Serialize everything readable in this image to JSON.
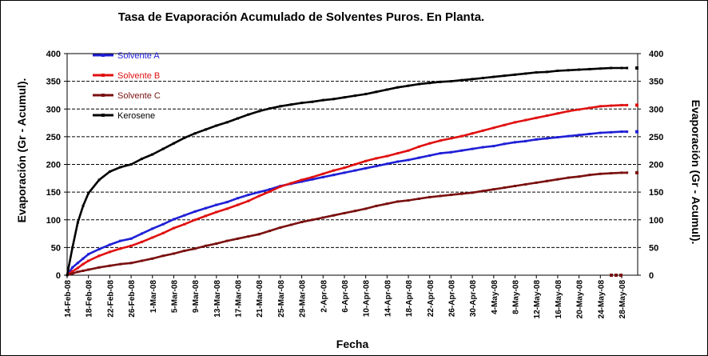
{
  "chart_data": {
    "type": "line",
    "title": "Tasa de Evaporación Acumulado de Solventes Puros. En Planta.",
    "xlabel": "Fecha",
    "ylabel": "Evaporación (Gr - Acumul).",
    "y2label": "Evaporación (Gr - Acumul).",
    "ylim": [
      0,
      400
    ],
    "yticks": [
      "0",
      "50",
      "100",
      "150",
      "200",
      "250",
      "300",
      "350",
      "400"
    ],
    "xlim": [
      "14-Feb-08",
      "31-May-08"
    ],
    "xticks": [
      "14-Feb-08",
      "18-Feb-08",
      "22-Feb-08",
      "26-Feb-08",
      "1-Mar-08",
      "5-Mar-08",
      "9-Mar-08",
      "13-Mar-08",
      "17-Mar-08",
      "21-Mar-08",
      "25-Mar-08",
      "29-Mar-08",
      "2-Apr-08",
      "6-Apr-08",
      "10-Apr-08",
      "14-Apr-08",
      "18-Apr-08",
      "22-Apr-08",
      "26-Apr-08",
      "30-Apr-08",
      "4-May-08",
      "8-May-08",
      "12-May-08",
      "16-May-08",
      "20-May-08",
      "24-May-08",
      "28-May-08"
    ],
    "grid": "horizontal",
    "legend_position": "top-left",
    "x": [
      "14-Feb-08",
      "15-Feb-08",
      "16-Feb-08",
      "17-Feb-08",
      "18-Feb-08",
      "20-Feb-08",
      "22-Feb-08",
      "24-Feb-08",
      "26-Feb-08",
      "28-Feb-08",
      "1-Mar-08",
      "3-Mar-08",
      "5-Mar-08",
      "7-Mar-08",
      "9-Mar-08",
      "11-Mar-08",
      "13-Mar-08",
      "15-Mar-08",
      "17-Mar-08",
      "19-Mar-08",
      "21-Mar-08",
      "23-Mar-08",
      "25-Mar-08",
      "27-Mar-08",
      "29-Mar-08",
      "31-Mar-08",
      "2-Apr-08",
      "4-Apr-08",
      "6-Apr-08",
      "8-Apr-08",
      "10-Apr-08",
      "12-Apr-08",
      "14-Apr-08",
      "16-Apr-08",
      "18-Apr-08",
      "20-Apr-08",
      "22-Apr-08",
      "24-Apr-08",
      "26-Apr-08",
      "28-Apr-08",
      "30-Apr-08",
      "2-May-08",
      "4-May-08",
      "6-May-08",
      "8-May-08",
      "10-May-08",
      "12-May-08",
      "14-May-08",
      "16-May-08",
      "18-May-08",
      "20-May-08",
      "22-May-08",
      "24-May-08",
      "26-May-08",
      "28-May-08",
      "29-May-08"
    ],
    "series": [
      {
        "name": "Solvente A",
        "color": "#1f1fd6",
        "values": [
          0,
          14,
          22,
          30,
          38,
          47,
          55,
          62,
          66,
          75,
          84,
          92,
          101,
          108,
          115,
          121,
          127,
          132,
          139,
          145,
          150,
          155,
          161,
          165,
          169,
          173,
          177,
          181,
          185,
          189,
          193,
          197,
          201,
          205,
          208,
          212,
          216,
          220,
          222,
          225,
          228,
          231,
          233,
          237,
          240,
          242,
          245,
          247,
          249,
          251,
          253,
          255,
          257,
          258,
          259,
          259
        ]
      },
      {
        "name": "Solvente B",
        "color": "#e01010",
        "values": [
          0,
          7,
          13,
          20,
          26,
          35,
          42,
          48,
          53,
          60,
          68,
          76,
          85,
          92,
          100,
          107,
          114,
          120,
          127,
          134,
          143,
          151,
          160,
          166,
          172,
          177,
          183,
          189,
          194,
          200,
          206,
          211,
          215,
          220,
          225,
          232,
          238,
          243,
          247,
          251,
          256,
          261,
          266,
          271,
          276,
          280,
          284,
          288,
          292,
          296,
          299,
          302,
          305,
          306,
          307,
          307
        ]
      },
      {
        "name": "Solvente C",
        "color": "#7a1010",
        "values": [
          0,
          3,
          6,
          8,
          10,
          14,
          17,
          20,
          22,
          26,
          30,
          35,
          39,
          44,
          48,
          53,
          57,
          62,
          66,
          70,
          74,
          80,
          86,
          91,
          96,
          100,
          104,
          108,
          112,
          116,
          120,
          125,
          129,
          133,
          135,
          138,
          141,
          143,
          145,
          147,
          149,
          152,
          155,
          158,
          161,
          164,
          167,
          170,
          173,
          176,
          178,
          181,
          183,
          184,
          185,
          185
        ]
      },
      {
        "name": "Kerosene",
        "color": "#000000",
        "values": [
          0,
          50,
          95,
          125,
          148,
          172,
          187,
          195,
          200,
          210,
          218,
          228,
          238,
          248,
          256,
          263,
          270,
          276,
          283,
          290,
          296,
          301,
          305,
          308,
          311,
          313,
          316,
          318,
          321,
          324,
          327,
          331,
          335,
          339,
          342,
          345,
          347,
          349,
          350,
          352,
          354,
          356,
          358,
          360,
          362,
          364,
          366,
          367,
          369,
          370,
          371,
          372,
          373,
          374,
          374,
          374
        ]
      }
    ],
    "offchart_markers": [
      {
        "series": "Kerosene",
        "value": 374
      },
      {
        "series": "Solvente B",
        "value": 307
      },
      {
        "series": "Solvente A",
        "value": 259
      },
      {
        "series": "Solvente C",
        "value": 185
      }
    ]
  }
}
